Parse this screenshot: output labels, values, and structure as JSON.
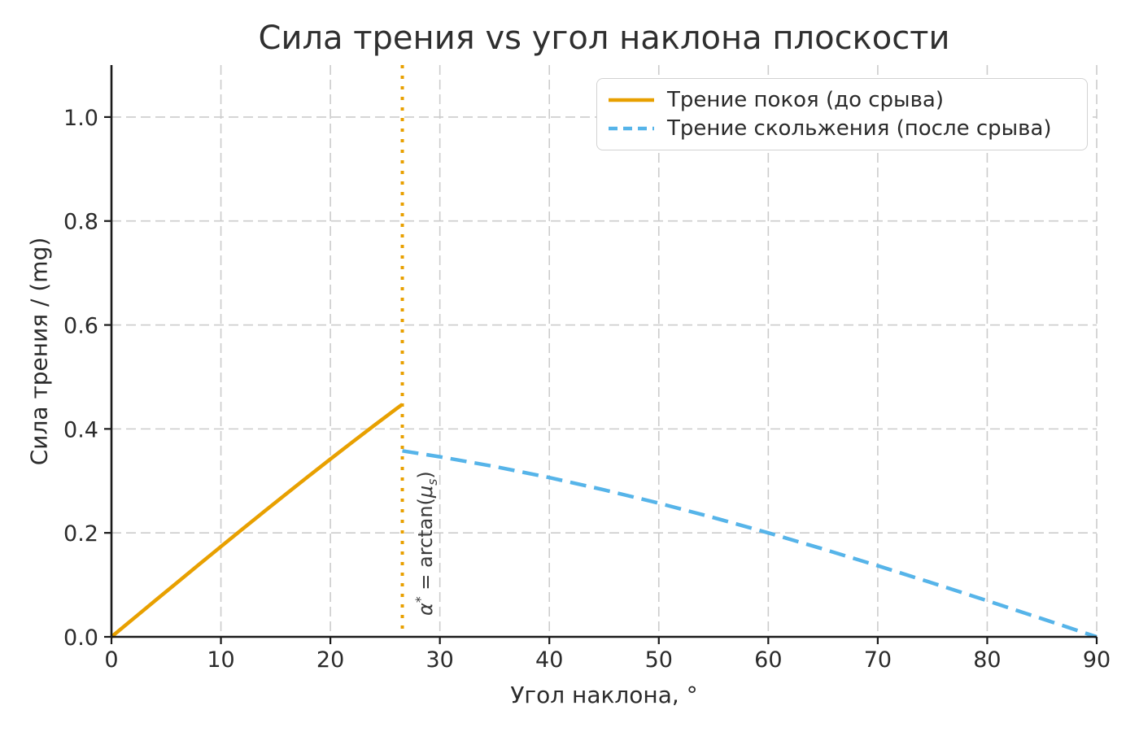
{
  "chart_data": {
    "type": "line",
    "title": "Сила трения vs угол наклона плоскости",
    "xlabel": "Угол наклона, °",
    "ylabel": "Сила трения / (mg)",
    "xlim": [
      0,
      90
    ],
    "ylim": [
      0,
      1.1
    ],
    "x_ticks": [
      0,
      10,
      20,
      30,
      40,
      50,
      60,
      70,
      80,
      90
    ],
    "x_tick_labels": [
      "0",
      "10",
      "20",
      "30",
      "40",
      "50",
      "60",
      "70",
      "80",
      "90"
    ],
    "y_ticks": [
      0.0,
      0.2,
      0.4,
      0.6,
      0.8,
      1.0
    ],
    "y_tick_labels": [
      "0.0",
      "0.2",
      "0.4",
      "0.6",
      "0.8",
      "1.0"
    ],
    "grid": "dashed",
    "grid_color": "#cccccc",
    "axis_color": "#1a1a1a",
    "text_color": "#2b2b2b",
    "legend_position": "upper right",
    "series": [
      {
        "name": "Трение покоя (до срыва)",
        "color": "#e8a000",
        "style": "solid",
        "x": [
          0,
          2,
          4,
          6,
          8,
          10,
          12,
          14,
          16,
          18,
          20,
          22,
          24,
          26,
          26.57
        ],
        "y": [
          0.0,
          0.0349,
          0.0698,
          0.1045,
          0.1392,
          0.1736,
          0.2079,
          0.2419,
          0.2756,
          0.309,
          0.342,
          0.3746,
          0.4067,
          0.4384,
          0.4472
        ]
      },
      {
        "name": "Трение скольжения (после срыва)",
        "color": "#56b4e9",
        "style": "dashed",
        "x": [
          26.57,
          30,
          35,
          40,
          45,
          50,
          55,
          60,
          65,
          70,
          75,
          80,
          85,
          90
        ],
        "y": [
          0.3578,
          0.3464,
          0.3277,
          0.3064,
          0.2828,
          0.2571,
          0.2294,
          0.2,
          0.169,
          0.1368,
          0.1035,
          0.0695,
          0.0349,
          0.0
        ]
      }
    ],
    "vline": {
      "x": 26.57,
      "color": "#e8a000",
      "style": "dotted",
      "label": "α* = arctan(μs)"
    },
    "annotation_parts": {
      "alpha": "α",
      "sup": "*",
      "mid": " = arctan(",
      "mu": "μ",
      "sub": "s",
      "close": ")"
    }
  }
}
